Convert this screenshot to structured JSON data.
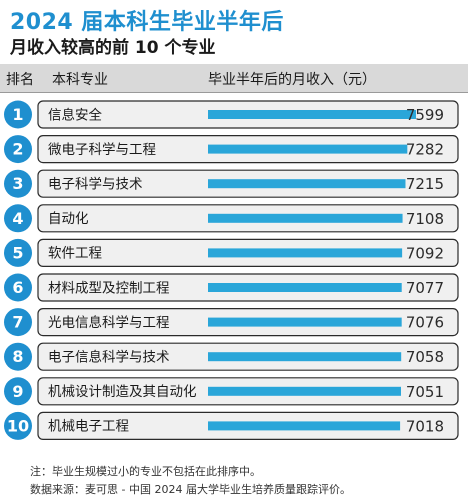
{
  "title": "2024 届本科生毕业半年后",
  "subtitle": "月收入较高的前 10 个专业",
  "header": {
    "rank": "排名",
    "major": "本科专业",
    "income": "毕业半年后的月收入（元）"
  },
  "colors": {
    "accent": "#1f8fcf",
    "bar": "#2aa6d9",
    "header_bg": "#d9d9d9",
    "row_bg": "#f0f0f0"
  },
  "chart_data": {
    "type": "bar",
    "orientation": "horizontal",
    "categories": [
      "信息安全",
      "微电子科学与工程",
      "电子科学与技术",
      "自动化",
      "软件工程",
      "材料成型及控制工程",
      "光电信息科学与工程",
      "电子信息科学与技术",
      "机械设计制造及其自动化",
      "机械电子工程"
    ],
    "ranks": [
      "1",
      "2",
      "3",
      "4",
      "5",
      "6",
      "7",
      "8",
      "9",
      "10"
    ],
    "values": [
      7599,
      7282,
      7215,
      7108,
      7092,
      7077,
      7076,
      7058,
      7051,
      7018
    ],
    "value_labels": [
      "7599",
      "7282",
      "7215",
      "7108",
      "7092",
      "7077",
      "7076",
      "7058",
      "7051",
      "7018"
    ],
    "xlim": [
      0,
      7599
    ],
    "grid": false,
    "legend": "none"
  },
  "footer": {
    "note": "注：毕业生规模过小的专业不包括在此排序中。",
    "source": "数据来源：麦可思 - 中国 2024 届大学毕业生培养质量跟踪评价。"
  }
}
